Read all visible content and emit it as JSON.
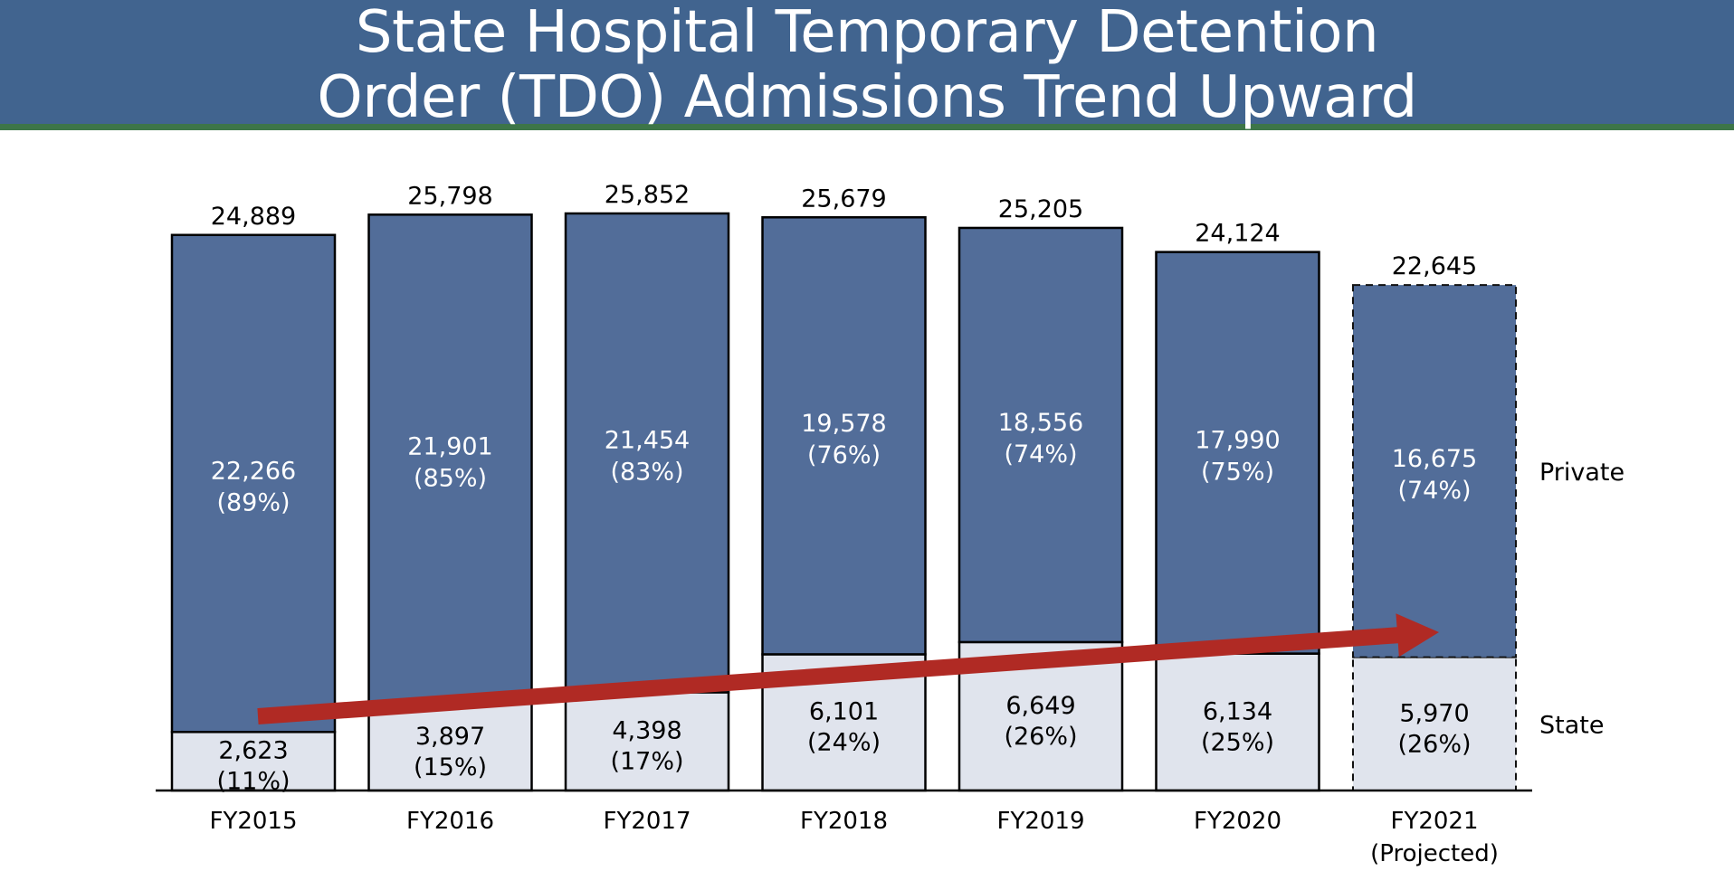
{
  "page": {
    "title_line1": "State Hospital Temporary Detention",
    "title_line2": "Order (TDO) Admissions Trend Upward"
  },
  "colors": {
    "header": "#41648f",
    "header_rule": "#3d7548",
    "private": "#526d99",
    "state": "#e0e4ed",
    "arrow": "#b02a24"
  },
  "chart_data": {
    "type": "bar",
    "stacked": true,
    "categories": [
      "FY2015",
      "FY2016",
      "FY2017",
      "FY2018",
      "FY2019",
      "FY2020",
      "FY2021"
    ],
    "category_sublabels": [
      "",
      "",
      "",
      "",
      "",
      "",
      "(Projected)"
    ],
    "projected": [
      false,
      false,
      false,
      false,
      false,
      false,
      true
    ],
    "totals": [
      "24,889",
      "25,798",
      "25,852",
      "25,679",
      "25,205",
      "24,124",
      "22,645"
    ],
    "total_values": [
      24889,
      25798,
      25852,
      25679,
      25205,
      24124,
      22645
    ],
    "series": [
      {
        "name": "State",
        "values": [
          2623,
          3897,
          4398,
          6101,
          6649,
          6134,
          5970
        ],
        "labels": [
          "2,623",
          "3,897",
          "4,398",
          "6,101",
          "6,649",
          "6,134",
          "5,970"
        ],
        "percents": [
          "(11%)",
          "(15%)",
          "(17%)",
          "(24%)",
          "(26%)",
          "(25%)",
          "(26%)"
        ],
        "color": "#e0e4ed"
      },
      {
        "name": "Private",
        "values": [
          22266,
          21901,
          21454,
          19578,
          18556,
          17990,
          16675
        ],
        "labels": [
          "22,266",
          "21,901",
          "21,454",
          "19,578",
          "18,556",
          "17,990",
          "16,675"
        ],
        "percents": [
          "(89%)",
          "(85%)",
          "(83%)",
          "(76%)",
          "(74%)",
          "(75%)",
          "(74%)"
        ],
        "color": "#526d99"
      }
    ],
    "ylim": [
      0,
      25852
    ],
    "grid": false,
    "legend": "right",
    "trend_arrow": {
      "from": "FY2015",
      "to": "FY2021",
      "color": "#b02a24"
    }
  }
}
